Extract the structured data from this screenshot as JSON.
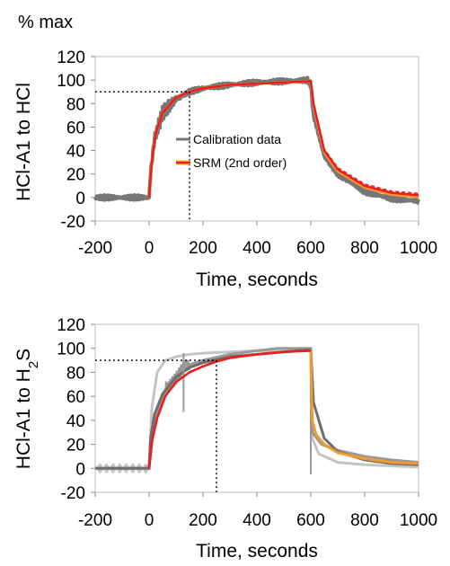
{
  "unit_label": "% max",
  "chart_data": [
    {
      "type": "line",
      "xlabel": "Time, seconds",
      "ylabel": "HCl-A1 to HCl",
      "xlim": [
        -200,
        1000
      ],
      "ylim": [
        -20,
        120
      ],
      "xticks": [
        "-200",
        "0",
        "200",
        "400",
        "600",
        "800",
        "1000"
      ],
      "yticks": [
        "-20",
        "0",
        "20",
        "40",
        "60",
        "80",
        "100",
        "120"
      ],
      "legend": [
        "Calibration data",
        "SRM (2nd order)"
      ],
      "legend_position": "center",
      "colors": {
        "calibration": "#777777",
        "srm_main": "#ee1c1c",
        "srm_alt": "#f39a2d"
      },
      "reference_point": {
        "x": 150,
        "y": 90
      },
      "series": [
        {
          "name": "Calibration data",
          "x": [
            -200,
            -50,
            0,
            5,
            20,
            50,
            100,
            150,
            200,
            300,
            400,
            500,
            590,
            600,
            610,
            650,
            700,
            800,
            900,
            1000
          ],
          "y": [
            0,
            0,
            0,
            20,
            50,
            72,
            84,
            90,
            93,
            96,
            98,
            99,
            100,
            95,
            70,
            35,
            20,
            5,
            -1,
            -3
          ]
        },
        {
          "name": "SRM (2nd order)",
          "x": [
            0,
            10,
            25,
            50,
            100,
            150,
            200,
            300,
            400,
            500,
            600,
            610,
            650,
            700,
            800,
            900,
            1000
          ],
          "y": [
            0,
            30,
            55,
            72,
            85,
            90,
            93,
            96,
            97,
            98,
            99,
            80,
            40,
            24,
            10,
            4,
            2
          ]
        }
      ]
    },
    {
      "type": "line",
      "xlabel": "Time, seconds",
      "ylabel": "HCl-A1 to H2S",
      "xlim": [
        -200,
        1000
      ],
      "ylim": [
        -20,
        120
      ],
      "xticks": [
        "-200",
        "0",
        "200",
        "400",
        "600",
        "800",
        "1000"
      ],
      "yticks": [
        "-20",
        "0",
        "20",
        "40",
        "60",
        "80",
        "100",
        "120"
      ],
      "colors": {
        "light": "#c4c4c4",
        "mid": "#999999",
        "dark": "#6e6e6e",
        "srm_main": "#ee1c1c",
        "srm_alt": "#f39a2d"
      },
      "reference_point": {
        "x": 250,
        "y": 90
      },
      "series": [
        {
          "x": [
            -200,
            0,
            10,
            30,
            60,
            100,
            150,
            200,
            300,
            400,
            500,
            600,
            605,
            630,
            700,
            800,
            900,
            1000
          ],
          "y": [
            0,
            0,
            50,
            80,
            90,
            93,
            95,
            96,
            97,
            98,
            98,
            99,
            25,
            12,
            5,
            3,
            2,
            1
          ]
        },
        {
          "x": [
            -200,
            0,
            20,
            60,
            100,
            130,
            200,
            300,
            400,
            480,
            550,
            600,
            605,
            640,
            700,
            800,
            900,
            1000
          ],
          "y": [
            0,
            0,
            40,
            65,
            75,
            85,
            90,
            95,
            98,
            100,
            100,
            100,
            30,
            20,
            15,
            10,
            7,
            5
          ]
        },
        {
          "x": [
            -200,
            0,
            5,
            20,
            50,
            100,
            150,
            200,
            300,
            400,
            500,
            600,
            610,
            650,
            700,
            800,
            900,
            1000
          ],
          "y": [
            0,
            0,
            25,
            45,
            62,
            76,
            84,
            88,
            93,
            95,
            97,
            99,
            55,
            25,
            14,
            7,
            4,
            3
          ]
        }
      ]
    }
  ]
}
